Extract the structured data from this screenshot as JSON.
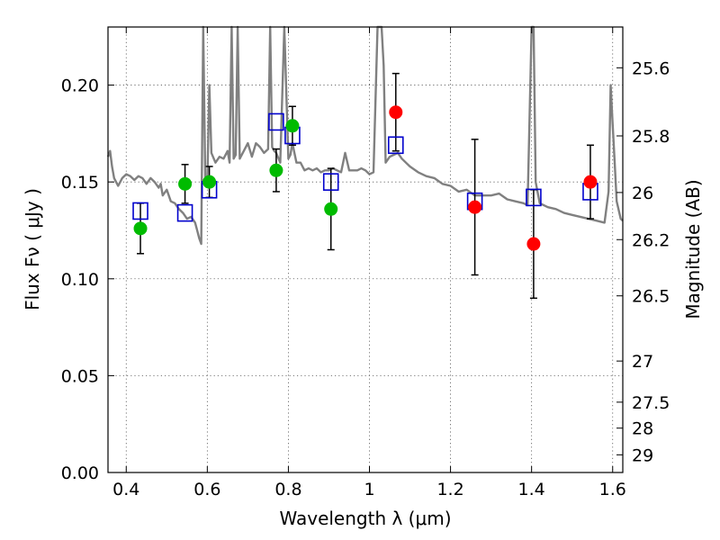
{
  "chart_data": {
    "type": "scatter",
    "xlabel": "Wavelength  λ (μm)",
    "ylabel": "Flux  Fν  ( μJy )",
    "ylabel_right": "Magnitude (AB)",
    "xlim": [
      0.355,
      1.625
    ],
    "ylim": [
      0.0,
      0.23
    ],
    "grid": true,
    "x_ticks": [
      0.4,
      0.6,
      0.8,
      1.0,
      1.2,
      1.4,
      1.6
    ],
    "x_tick_labels": [
      "0.4",
      "0.6",
      "0.8",
      "1",
      "1.2",
      "1.4",
      "1.6"
    ],
    "y_ticks": [
      0.0,
      0.05,
      0.1,
      0.15,
      0.2
    ],
    "y_tick_labels": [
      "0.00",
      "0.05",
      "0.10",
      "0.15",
      "0.20"
    ],
    "mag_ticks": [
      "25.6",
      "25.8",
      "26",
      "26.2",
      "26.5",
      "27",
      "27.5",
      "28",
      "29"
    ],
    "colors": {
      "model": "#808080",
      "observed_optical": "#00bb00",
      "observed_ir": "#ff0000",
      "model_photometry": "#0000cc",
      "errorbar": "#000000"
    },
    "series": [
      {
        "name": "",
        "kind": "model_spectrum",
        "x": [
          0.355,
          0.36,
          0.365,
          0.37,
          0.375,
          0.38,
          0.39,
          0.4,
          0.41,
          0.42,
          0.43,
          0.44,
          0.45,
          0.46,
          0.47,
          0.48,
          0.485,
          0.49,
          0.5,
          0.51,
          0.52,
          0.53,
          0.54,
          0.55,
          0.56,
          0.57,
          0.575,
          0.58,
          0.585,
          0.59,
          0.595,
          0.6,
          0.605,
          0.61,
          0.62,
          0.63,
          0.64,
          0.65,
          0.655,
          0.66,
          0.665,
          0.67,
          0.675,
          0.68,
          0.69,
          0.7,
          0.71,
          0.72,
          0.73,
          0.74,
          0.75,
          0.755,
          0.76,
          0.765,
          0.77,
          0.78,
          0.79,
          0.8,
          0.805,
          0.81,
          0.82,
          0.83,
          0.84,
          0.85,
          0.86,
          0.87,
          0.88,
          0.89,
          0.9,
          0.91,
          0.92,
          0.93,
          0.94,
          0.95,
          0.96,
          0.97,
          0.98,
          0.99,
          1.0,
          1.01,
          1.02,
          1.025,
          1.03,
          1.035,
          1.04,
          1.05,
          1.06,
          1.07,
          1.08,
          1.09,
          1.1,
          1.12,
          1.14,
          1.16,
          1.18,
          1.2,
          1.22,
          1.24,
          1.26,
          1.28,
          1.3,
          1.32,
          1.34,
          1.36,
          1.38,
          1.39,
          1.4,
          1.405,
          1.41,
          1.42,
          1.44,
          1.46,
          1.48,
          1.5,
          1.52,
          1.54,
          1.56,
          1.58,
          1.59,
          1.595,
          1.6,
          1.605,
          1.61,
          1.62,
          1.625
        ],
        "y": [
          0.163,
          0.166,
          0.158,
          0.152,
          0.15,
          0.148,
          0.152,
          0.154,
          0.153,
          0.151,
          0.153,
          0.152,
          0.149,
          0.152,
          0.15,
          0.147,
          0.149,
          0.143,
          0.146,
          0.14,
          0.139,
          0.136,
          0.134,
          0.131,
          0.132,
          0.129,
          0.125,
          0.121,
          0.118,
          0.23,
          0.15,
          0.148,
          0.2,
          0.165,
          0.16,
          0.163,
          0.162,
          0.166,
          0.16,
          0.23,
          0.162,
          0.164,
          0.23,
          0.162,
          0.166,
          0.17,
          0.163,
          0.17,
          0.168,
          0.165,
          0.167,
          0.23,
          0.168,
          0.166,
          0.165,
          0.16,
          0.23,
          0.162,
          0.164,
          0.17,
          0.16,
          0.16,
          0.156,
          0.157,
          0.156,
          0.157,
          0.155,
          0.156,
          0.156,
          0.157,
          0.156,
          0.155,
          0.165,
          0.156,
          0.156,
          0.156,
          0.157,
          0.156,
          0.154,
          0.155,
          0.23,
          0.23,
          0.23,
          0.21,
          0.16,
          0.163,
          0.164,
          0.165,
          0.162,
          0.16,
          0.158,
          0.155,
          0.153,
          0.152,
          0.149,
          0.148,
          0.145,
          0.146,
          0.143,
          0.143,
          0.143,
          0.144,
          0.141,
          0.14,
          0.139,
          0.138,
          0.23,
          0.23,
          0.15,
          0.139,
          0.137,
          0.136,
          0.134,
          0.133,
          0.132,
          0.131,
          0.13,
          0.129,
          0.145,
          0.2,
          0.18,
          0.16,
          0.14,
          0.131,
          0.13
        ]
      },
      {
        "name": "",
        "kind": "model_photometry",
        "marker": "open-square",
        "x": [
          0.435,
          0.545,
          0.605,
          0.77,
          0.81,
          0.905,
          1.065,
          1.26,
          1.405,
          1.545
        ],
        "y": [
          0.135,
          0.134,
          0.146,
          0.181,
          0.174,
          0.15,
          0.169,
          0.14,
          0.142,
          0.145
        ]
      },
      {
        "name": "",
        "kind": "observed",
        "marker": "filled-circle",
        "color": "#00bb00",
        "x": [
          0.435,
          0.545,
          0.605,
          0.77,
          0.81,
          0.905
        ],
        "y": [
          0.126,
          0.149,
          0.15,
          0.156,
          0.179,
          0.136
        ],
        "yerr": [
          0.013,
          0.01,
          0.008,
          0.011,
          0.01,
          0.021
        ]
      },
      {
        "name": "",
        "kind": "observed",
        "marker": "filled-circle",
        "color": "#ff0000",
        "x": [
          1.065,
          1.26,
          1.405,
          1.545
        ],
        "y": [
          0.186,
          0.137,
          0.118,
          0.15
        ],
        "yerr": [
          0.02,
          0.035,
          0.028,
          0.019
        ]
      }
    ]
  }
}
